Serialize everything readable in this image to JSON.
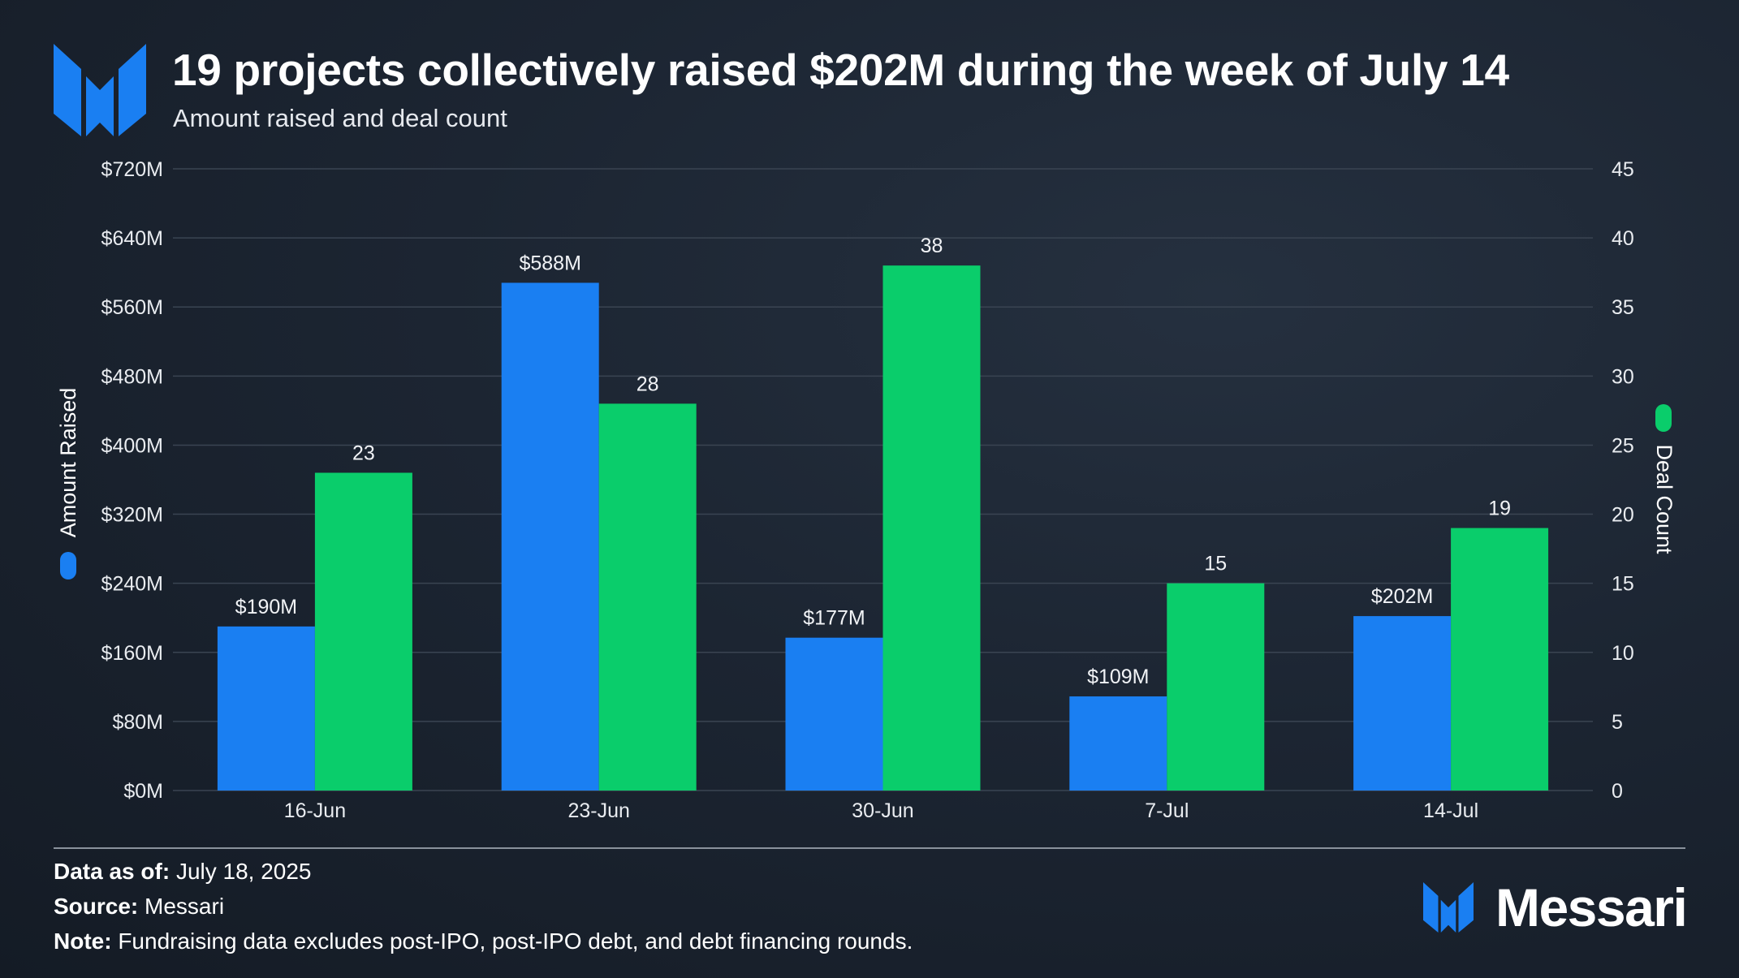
{
  "header": {
    "title": "19 projects collectively raised $202M during the week of July 14",
    "subtitle": "Amount raised and deal count"
  },
  "colors": {
    "amount": "#1a7ff2",
    "deals": "#0acd6b",
    "grid": "#3a4452",
    "background": "#1c2532"
  },
  "chart_data": {
    "type": "bar",
    "title": "19 projects collectively raised $202M during the week of July 14",
    "subtitle": "Amount raised and deal count",
    "categories": [
      "16-Jun",
      "23-Jun",
      "30-Jun",
      "7-Jul",
      "14-Jul"
    ],
    "series": [
      {
        "name": "Amount Raised",
        "axis": "left",
        "values": [
          190,
          588,
          177,
          109,
          202
        ],
        "labels": [
          "$190M",
          "$588M",
          "$177M",
          "$109M",
          "$202M"
        ]
      },
      {
        "name": "Deal Count",
        "axis": "right",
        "values": [
          23,
          28,
          38,
          15,
          19
        ],
        "labels": [
          "23",
          "28",
          "38",
          "15",
          "19"
        ]
      }
    ],
    "y_left": {
      "label": "Amount Raised",
      "ylim": [
        0,
        720
      ],
      "ticks": [
        0,
        80,
        160,
        240,
        320,
        400,
        480,
        560,
        640,
        720
      ],
      "tick_labels": [
        "$0M",
        "$80M",
        "$160M",
        "$240M",
        "$320M",
        "$400M",
        "$480M",
        "$560M",
        "$640M",
        "$720M"
      ]
    },
    "y_right": {
      "label": "Deal Count",
      "ylim": [
        0,
        45
      ],
      "ticks": [
        0,
        5,
        10,
        15,
        20,
        25,
        30,
        35,
        40,
        45
      ],
      "tick_labels": [
        "0",
        "5",
        "10",
        "15",
        "20",
        "25",
        "30",
        "35",
        "40",
        "45"
      ]
    },
    "grid": true,
    "legend": "axis-titles"
  },
  "footer": {
    "data_as_of_label": "Data as of:",
    "data_as_of_value": "July 18, 2025",
    "source_label": "Source:",
    "source_value": "Messari",
    "note_label": "Note:",
    "note_value": "Fundraising data excludes post-IPO, post-IPO debt, and debt financing rounds."
  },
  "brand": {
    "name": "Messari",
    "logo_icon": "messari-logo-icon"
  }
}
